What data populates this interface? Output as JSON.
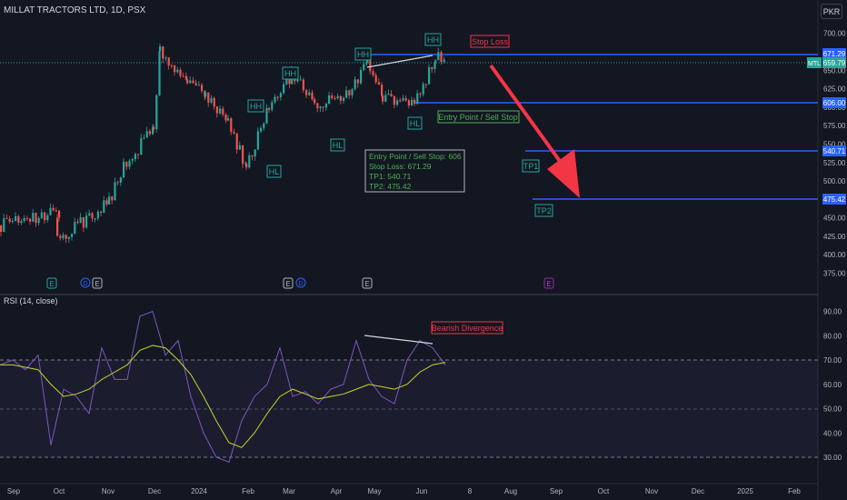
{
  "header": {
    "symbol_line": "MILLAT TRACTORS LTD, 1D, PSX",
    "currency": "PKR"
  },
  "rsi_label": "RSI (14, close)",
  "chart_data": [
    {
      "type": "candlestick",
      "title": "MILLAT TRACTORS LTD, 1D, PSX",
      "y_ticks": [
        375,
        400,
        425,
        450,
        475,
        500,
        525,
        550,
        575,
        600,
        625,
        650,
        675,
        700
      ],
      "x_ticks": [
        "Sep",
        "Oct",
        "Nov",
        "Dec",
        "2024",
        "Feb",
        "Mar",
        "Apr",
        "May",
        "Jun",
        "8",
        "Aug",
        "Sep",
        "Oct",
        "Nov",
        "Dec",
        "2025",
        "Feb"
      ],
      "last_price": {
        "value": 659.79,
        "label": "659.79",
        "tag": "MTL"
      },
      "price_series": [
        {
          "month": "Sep",
          "close": 440
        },
        {
          "month": "Oct",
          "close": 458
        },
        {
          "month": "Oct",
          "close": 420
        },
        {
          "month": "Nov",
          "close": 470
        },
        {
          "month": "Nov",
          "close": 520
        },
        {
          "month": "Dec",
          "close": 570
        },
        {
          "month": "Dec",
          "close": 680
        },
        {
          "month": "Dec",
          "close": 630
        },
        {
          "month": "2024",
          "close": 620
        },
        {
          "month": "2024",
          "close": 580
        },
        {
          "month": "Feb",
          "close": 520
        },
        {
          "month": "Feb",
          "close": 600
        },
        {
          "month": "Mar",
          "close": 645
        },
        {
          "month": "Mar",
          "close": 605
        },
        {
          "month": "Apr",
          "close": 615
        },
        {
          "month": "Apr",
          "close": 662
        },
        {
          "month": "May",
          "close": 610
        },
        {
          "month": "May",
          "close": 605
        },
        {
          "month": "Jun",
          "close": 668
        },
        {
          "month": "Jun",
          "close": 660
        }
      ],
      "levels": [
        {
          "name": "Stop Loss",
          "value": 671.29,
          "label": "671.29",
          "color": "#2962ff"
        },
        {
          "name": "Entry Point / Sell Stop",
          "value": 606.0,
          "label": "606.00",
          "color": "#2962ff"
        },
        {
          "name": "TP1",
          "value": 540.71,
          "label": "540.71",
          "color": "#2962ff"
        },
        {
          "name": "TP2",
          "value": 475.42,
          "label": "475.42",
          "color": "#2962ff"
        }
      ],
      "annotations": [
        {
          "text": "HH",
          "color": "#26a69a"
        },
        {
          "text": "HH",
          "color": "#26a69a"
        },
        {
          "text": "HH",
          "color": "#26a69a"
        },
        {
          "text": "HH",
          "color": "#26a69a"
        },
        {
          "text": "HL",
          "color": "#26a69a"
        },
        {
          "text": "HL",
          "color": "#26a69a"
        },
        {
          "text": "HL",
          "color": "#26a69a"
        },
        {
          "text": "Stop Loss",
          "color": "#f23645"
        },
        {
          "text": "Entry Point / Sell Stop",
          "color": "#4caf50"
        },
        {
          "text": "TP1",
          "color": "#26a69a"
        },
        {
          "text": "TP2",
          "color": "#26a69a"
        }
      ],
      "info_box": [
        "Entry Point / Sell Stop: 606",
        "Stop Loss: 671.29",
        "TP1: 540.71",
        "TP2: 475.42"
      ],
      "event_markers": [
        "E",
        "D",
        "E",
        "E",
        "D",
        "E",
        "E"
      ],
      "colors": {
        "up": "#26a69a",
        "down": "#ef5350",
        "background": "#131722",
        "arrow": "#f23645"
      }
    },
    {
      "type": "line",
      "title": "RSI (14, close)",
      "y_ticks": [
        30,
        40,
        50,
        60,
        70,
        80,
        90
      ],
      "bands": {
        "upper": 70,
        "middle": 50,
        "lower": 30
      },
      "annotations": [
        {
          "text": "Bearish Divergence",
          "color": "#f23645"
        }
      ],
      "series": [
        {
          "values": [
            68,
            70,
            66,
            72,
            35,
            58,
            55,
            48,
            75,
            62,
            62,
            88,
            90,
            72,
            78,
            55,
            40,
            30,
            28,
            45,
            55,
            60,
            75,
            55,
            57,
            52,
            58,
            60,
            78,
            62,
            55,
            52,
            70,
            78,
            75,
            68
          ]
        },
        {
          "values": [
            68,
            68,
            67,
            66,
            60,
            55,
            56,
            58,
            62,
            65,
            68,
            74,
            76,
            75,
            70,
            64,
            55,
            45,
            36,
            34,
            40,
            48,
            55,
            58,
            56,
            54,
            55,
            56,
            58,
            60,
            59,
            58,
            60,
            65,
            68,
            69
          ]
        }
      ]
    }
  ]
}
